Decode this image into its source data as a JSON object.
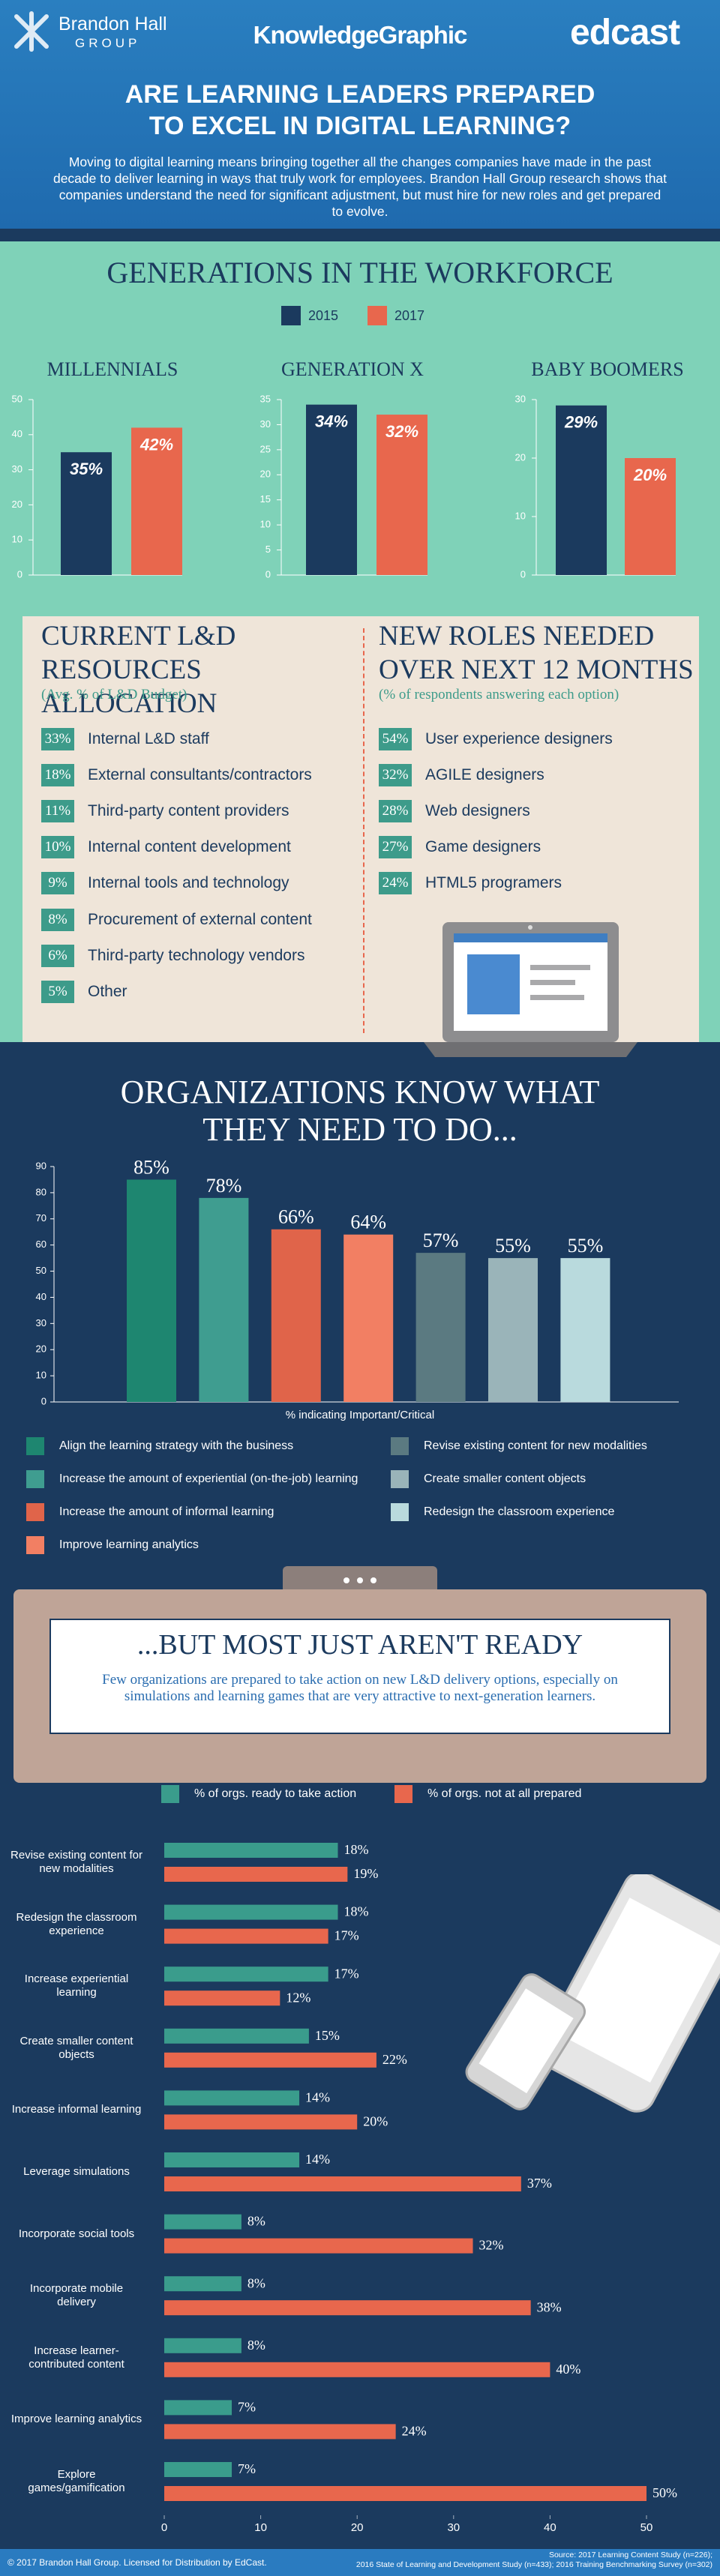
{
  "header": {
    "logo": "Brandon Hall",
    "logo_sub": "GROUP",
    "brand": "KnowledgeGraphic",
    "partner": "edcast",
    "title": "ARE LEARNING LEADERS PREPARED\nTO EXCEL IN DIGITAL LEARNING?",
    "intro": "Moving to digital learning means bringing together all the changes companies have made in the past decade to deliver learning in ways that truly work for employees. Brandon Hall Group research shows that companies understand the need for significant adjustment, but must hire for new roles and get prepared to evolve."
  },
  "generations": {
    "title": "GENERATIONS IN THE WORKFORCE"
  },
  "chart_data": [
    {
      "type": "bar",
      "title": "MILLENNIALS",
      "series": [
        {
          "name": "2015",
          "color": "#1b3a5e",
          "values": [
            35
          ],
          "value_labels": [
            "35%"
          ]
        },
        {
          "name": "2017",
          "color": "#e8674d",
          "values": [
            42
          ],
          "value_labels": [
            "42%"
          ]
        }
      ],
      "ylim": [
        0,
        50
      ],
      "yticks": [
        0,
        10,
        20,
        30,
        40,
        50
      ]
    },
    {
      "type": "bar",
      "title": "GENERATION X",
      "series": [
        {
          "values": [
            34
          ],
          "value_labels": [
            "34%"
          ]
        },
        {
          "values": [
            32
          ],
          "value_labels": [
            "32%"
          ]
        }
      ],
      "ylim": [
        0,
        35
      ],
      "yticks": [
        0,
        5,
        10,
        15,
        20,
        25,
        30,
        35
      ]
    },
    {
      "type": "bar",
      "title": "BABY BOOMERS",
      "series": [
        {
          "values": [
            29
          ],
          "value_labels": [
            "29%"
          ]
        },
        {
          "values": [
            20
          ],
          "value_labels": [
            "20%"
          ]
        }
      ],
      "ylim": [
        0,
        30
      ],
      "yticks": [
        0,
        10,
        20,
        30
      ]
    },
    {
      "type": "bar",
      "title": "ORGANIZATIONS KNOW WHAT\nTHEY NEED TO DO...",
      "x_label": "% indicating Important/Critical",
      "categories": [
        "Align the learning strategy with the business",
        "Increase the amount of experiential (on-the-job) learning",
        "Increase the amount of informal learning",
        "Improve learning analytics",
        "Revise existing content for new modalities",
        "Create smaller content objects",
        "Redesign the classroom experience"
      ],
      "values": [
        85,
        78,
        66,
        64,
        57,
        55,
        55
      ],
      "value_labels": [
        "85%",
        "78%",
        "66%",
        "64%",
        "57%",
        "55%",
        "55%"
      ],
      "colors": [
        "#1e8670",
        "#3f9d90",
        "#e0644a",
        "#f27f63",
        "#5b7a81",
        "#9ab4b9",
        "#b9dadd"
      ],
      "ylim": [
        0,
        90
      ],
      "yticks": [
        0,
        10,
        20,
        30,
        40,
        50,
        60,
        70,
        80,
        90
      ]
    },
    {
      "type": "hbar",
      "title": "...BUT MOST JUST AREN'T READY",
      "subtitle": "Few organizations are prepared to take action on new L&D delivery options, especially on simulations and learning games that are very attractive to next-generation learners.",
      "categories": [
        "Revise existing content for new modalities",
        "Redesign the classroom experience",
        "Increase experiential learning",
        "Create smaller content objects",
        "Increase informal learning",
        "Leverage simulations",
        "Incorporate social tools",
        "Incorporate mobile delivery",
        "Increase learner-contributed content",
        "Improve learning analytics",
        "Explore games/gamification"
      ],
      "series": [
        {
          "name": "% of orgs. ready to take action",
          "color": "#3a9c8c",
          "values": [
            18,
            18,
            17,
            15,
            14,
            14,
            8,
            8,
            8,
            7,
            7
          ],
          "value_labels": [
            "18%",
            "18%",
            "17%",
            "15%",
            "14%",
            "14%",
            "8%",
            "8%",
            "8%",
            "7%",
            "7%"
          ]
        },
        {
          "name": "% of orgs. not at all prepared",
          "color": "#e8674d",
          "values": [
            19,
            17,
            12,
            22,
            20,
            37,
            32,
            38,
            40,
            24,
            50
          ],
          "value_labels": [
            "19%",
            "17%",
            "12%",
            "22%",
            "20%",
            "37%",
            "32%",
            "38%",
            "40%",
            "24%",
            "50%"
          ]
        }
      ],
      "xlim": [
        0,
        50
      ],
      "xticks": [
        0,
        10,
        20,
        30,
        40,
        50
      ]
    }
  ],
  "resources": {
    "title": "CURRENT L&D\nRESOURCES ALLOCATION",
    "subtitle": "(Avg. % of L&D Budget)",
    "items": [
      {
        "percent": "33%",
        "label": "Internal L&D staff"
      },
      {
        "percent": "18%",
        "label": "External consultants/contractors"
      },
      {
        "percent": "11%",
        "label": "Third-party content providers"
      },
      {
        "percent": "10%",
        "label": "Internal content development"
      },
      {
        "percent": "9%",
        "label": "Internal tools and technology"
      },
      {
        "percent": "8%",
        "label": "Procurement of external content"
      },
      {
        "percent": "6%",
        "label": "Third-party technology vendors"
      },
      {
        "percent": "5%",
        "label": "Other"
      }
    ]
  },
  "roles": {
    "title": "NEW ROLES NEEDED\nOVER NEXT 12 MONTHS",
    "subtitle": "(% of respondents answering each option)",
    "items": [
      {
        "percent": "54%",
        "label": "User experience designers"
      },
      {
        "percent": "32%",
        "label": "AGILE designers"
      },
      {
        "percent": "28%",
        "label": "Web designers"
      },
      {
        "percent": "27%",
        "label": "Game designers"
      },
      {
        "percent": "24%",
        "label": "HTML5 programers"
      }
    ]
  },
  "footer": {
    "copyright": "© 2017 Brandon Hall Group. Licensed for Distribution by EdCast.",
    "source": "Source: 2017 Learning Content Study (n=226);\n2016 State of Learning and Development Study (n=433); 2016 Training Benchmarking Survey (n=302)"
  }
}
